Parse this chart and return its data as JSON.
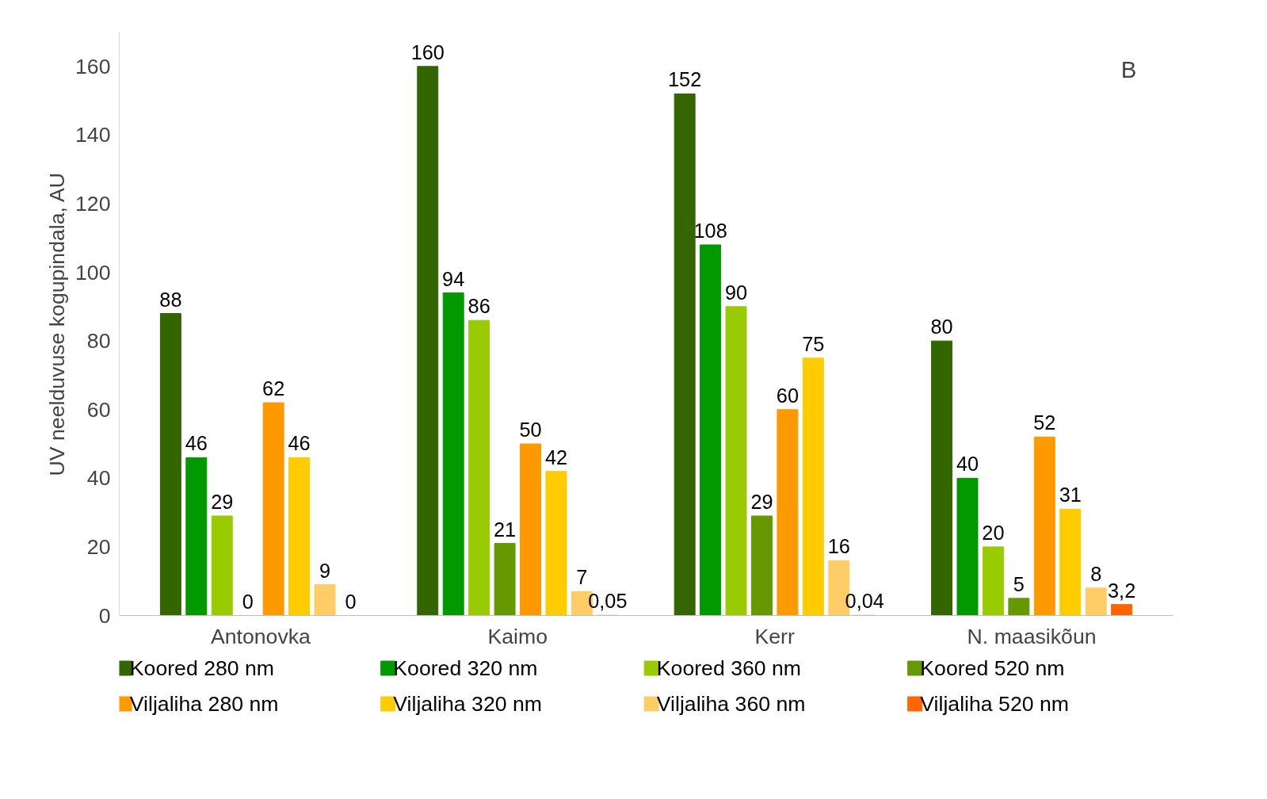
{
  "chart_data": {
    "type": "bar",
    "ylabel": "UV neelduvuse kogupindala, AU",
    "annotations": [
      "B"
    ],
    "categories": [
      "Antonovka",
      "Kaimo",
      "Kerr",
      "N. maasikõun"
    ],
    "ylim": [
      0,
      170
    ],
    "yticks": [
      0,
      20,
      40,
      60,
      80,
      100,
      120,
      140,
      160
    ],
    "grid": false,
    "legend": "bottom",
    "series": [
      {
        "name": "Koored 280 nm",
        "color": "#336600",
        "values": [
          88,
          160,
          152,
          80
        ],
        "value_labels": [
          "88",
          "160",
          "152",
          "80"
        ]
      },
      {
        "name": "Koored 320 nm",
        "color": "#009900",
        "values": [
          46,
          94,
          108,
          40
        ],
        "value_labels": [
          "46",
          "94",
          "108",
          "40"
        ]
      },
      {
        "name": "Koored 360 nm",
        "color": "#99cc00",
        "values": [
          29,
          86,
          90,
          20
        ],
        "value_labels": [
          "29",
          "86",
          "90",
          "20"
        ]
      },
      {
        "name": "Koored 520 nm",
        "color": "#669900",
        "values": [
          0,
          21,
          29,
          5
        ],
        "value_labels": [
          "0",
          "21",
          "29",
          "5"
        ]
      },
      {
        "name": "Viljaliha 280 nm",
        "color": "#ff9900",
        "values": [
          62,
          50,
          60,
          52
        ],
        "value_labels": [
          "62",
          "50",
          "60",
          "52"
        ]
      },
      {
        "name": "Viljaliha 320 nm",
        "color": "#ffcc00",
        "values": [
          46,
          42,
          75,
          31
        ],
        "value_labels": [
          "46",
          "42",
          "75",
          "31"
        ]
      },
      {
        "name": "Viljaliha 360 nm",
        "color": "#ffcc66",
        "values": [
          9,
          7,
          16,
          8
        ],
        "value_labels": [
          "9",
          "7",
          "16",
          "8"
        ]
      },
      {
        "name": "Viljaliha 520 nm",
        "color": "#ff6600",
        "values": [
          0,
          0.05,
          0.04,
          3.2
        ],
        "value_labels": [
          "0",
          "0,05",
          "0,04",
          "3,2"
        ]
      }
    ]
  }
}
